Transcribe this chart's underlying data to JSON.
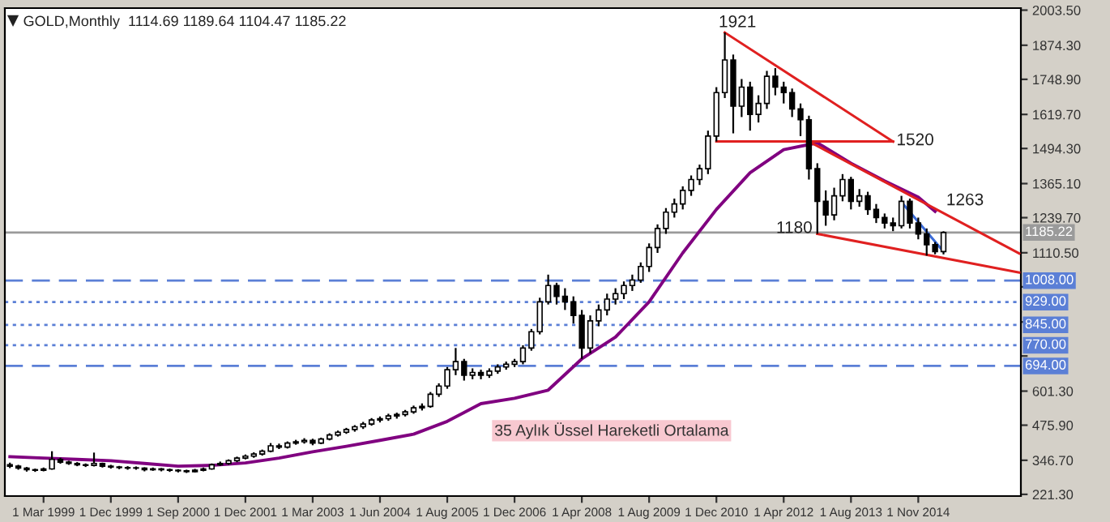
{
  "chart_data": {
    "type": "candlestick",
    "title": "GOLD,Monthly  1114.69 1189.64 1104.47 1185.22",
    "color": "#000000",
    "categories": [
      null,
      null,
      null,
      null,
      "1 Mar 1999",
      null,
      null,
      null,
      null,
      null,
      null,
      null,
      "1 Dec 1999",
      null,
      null,
      null,
      null,
      null,
      null,
      null,
      "1 Sep 2000",
      null,
      null,
      null,
      null,
      null,
      null,
      null,
      "1 Dec 2001",
      null,
      null,
      null,
      null,
      null,
      null,
      null,
      "1 Mar 2003",
      null,
      null,
      null,
      null,
      null,
      null,
      null,
      "1 Jun 2004",
      null,
      null,
      null,
      null,
      null,
      null,
      null,
      "1 Aug 2005",
      null,
      null,
      null,
      null,
      null,
      null,
      null,
      "1 Dec 2006",
      null,
      null,
      null,
      null,
      null,
      null,
      null,
      "1 Apr 2008",
      null,
      null,
      null,
      null,
      null,
      null,
      null,
      "1 Aug 2009",
      null,
      null,
      null,
      null,
      null,
      null,
      null,
      "1 Dec 2010",
      null,
      null,
      null,
      null,
      null,
      null,
      null,
      "1 Apr 2012",
      null,
      null,
      null,
      null,
      null,
      null,
      null,
      "1 Aug 2013",
      null,
      null,
      null,
      null,
      null,
      null,
      null,
      "1 Nov 2014",
      null,
      null,
      null,
      null,
      null,
      null,
      null,
      null,
      null,
      null,
      null,
      null
    ],
    "ohlc": [
      [
        330,
        338,
        318,
        325
      ],
      [
        325,
        330,
        312,
        318
      ],
      [
        318,
        322,
        305,
        312
      ],
      [
        312,
        316,
        304,
        310
      ],
      [
        310,
        320,
        306,
        315
      ],
      [
        315,
        380,
        312,
        350
      ],
      [
        350,
        356,
        334,
        340
      ],
      [
        340,
        345,
        330,
        335
      ],
      [
        335,
        340,
        325,
        330
      ],
      [
        330,
        335,
        322,
        328
      ],
      [
        328,
        375,
        324,
        335
      ],
      [
        335,
        338,
        320,
        325
      ],
      [
        325,
        330,
        316,
        322
      ],
      [
        322,
        326,
        314,
        320
      ],
      [
        320,
        325,
        312,
        318
      ],
      [
        318,
        324,
        312,
        318
      ],
      [
        318,
        321,
        306,
        312
      ],
      [
        312,
        320,
        308,
        315
      ],
      [
        315,
        318,
        306,
        312
      ],
      [
        312,
        316,
        304,
        310
      ],
      [
        310,
        314,
        302,
        308
      ],
      [
        308,
        312,
        300,
        305
      ],
      [
        305,
        315,
        302,
        310
      ],
      [
        310,
        320,
        306,
        315
      ],
      [
        315,
        335,
        312,
        330
      ],
      [
        330,
        342,
        326,
        335
      ],
      [
        335,
        350,
        330,
        345
      ],
      [
        345,
        360,
        340,
        355
      ],
      [
        355,
        368,
        350,
        362
      ],
      [
        362,
        376,
        356,
        370
      ],
      [
        370,
        386,
        364,
        380
      ],
      [
        380,
        410,
        376,
        400
      ],
      [
        400,
        408,
        388,
        395
      ],
      [
        395,
        416,
        390,
        410
      ],
      [
        410,
        422,
        404,
        415
      ],
      [
        415,
        428,
        408,
        420
      ],
      [
        420,
        426,
        402,
        410
      ],
      [
        410,
        430,
        406,
        425
      ],
      [
        425,
        446,
        420,
        440
      ],
      [
        440,
        456,
        434,
        450
      ],
      [
        450,
        466,
        444,
        460
      ],
      [
        460,
        476,
        452,
        470
      ],
      [
        470,
        488,
        462,
        480
      ],
      [
        480,
        502,
        474,
        495
      ],
      [
        495,
        508,
        486,
        500
      ],
      [
        500,
        518,
        492,
        510
      ],
      [
        510,
        522,
        500,
        515
      ],
      [
        515,
        532,
        508,
        525
      ],
      [
        525,
        548,
        518,
        540
      ],
      [
        540,
        556,
        530,
        545
      ],
      [
        545,
        598,
        540,
        590
      ],
      [
        590,
        630,
        580,
        620
      ],
      [
        620,
        690,
        610,
        680
      ],
      [
        680,
        760,
        660,
        710
      ],
      [
        710,
        720,
        640,
        660
      ],
      [
        660,
        685,
        645,
        670
      ],
      [
        670,
        680,
        645,
        660
      ],
      [
        660,
        685,
        650,
        675
      ],
      [
        675,
        700,
        665,
        690
      ],
      [
        690,
        710,
        680,
        700
      ],
      [
        700,
        720,
        690,
        710
      ],
      [
        710,
        770,
        700,
        760
      ],
      [
        760,
        830,
        750,
        820
      ],
      [
        820,
        945,
        810,
        930
      ],
      [
        930,
        1030,
        920,
        990
      ],
      [
        990,
        1000,
        920,
        950
      ],
      [
        950,
        980,
        900,
        930
      ],
      [
        930,
        950,
        850,
        880
      ],
      [
        880,
        900,
        720,
        760
      ],
      [
        760,
        880,
        740,
        860
      ],
      [
        860,
        920,
        840,
        900
      ],
      [
        900,
        960,
        880,
        940
      ],
      [
        940,
        980,
        920,
        960
      ],
      [
        960,
        1005,
        940,
        990
      ],
      [
        990,
        1030,
        970,
        1010
      ],
      [
        1010,
        1075,
        1000,
        1060
      ],
      [
        1060,
        1145,
        1040,
        1130
      ],
      [
        1130,
        1215,
        1110,
        1200
      ],
      [
        1200,
        1275,
        1180,
        1260
      ],
      [
        1260,
        1310,
        1240,
        1290
      ],
      [
        1290,
        1355,
        1270,
        1340
      ],
      [
        1340,
        1395,
        1320,
        1380
      ],
      [
        1380,
        1435,
        1360,
        1420
      ],
      [
        1420,
        1560,
        1400,
        1540
      ],
      [
        1540,
        1720,
        1520,
        1700
      ],
      [
        1700,
        1921,
        1680,
        1820
      ],
      [
        1820,
        1840,
        1550,
        1650
      ],
      [
        1650,
        1750,
        1610,
        1720
      ],
      [
        1720,
        1740,
        1560,
        1620
      ],
      [
        1620,
        1690,
        1590,
        1660
      ],
      [
        1660,
        1780,
        1640,
        1760
      ],
      [
        1760,
        1790,
        1690,
        1720
      ],
      [
        1720,
        1740,
        1660,
        1700
      ],
      [
        1700,
        1715,
        1610,
        1640
      ],
      [
        1640,
        1660,
        1540,
        1600
      ],
      [
        1600,
        1615,
        1380,
        1420
      ],
      [
        1420,
        1440,
        1180,
        1300
      ],
      [
        1300,
        1340,
        1210,
        1250
      ],
      [
        1250,
        1350,
        1230,
        1320
      ],
      [
        1320,
        1400,
        1300,
        1380
      ],
      [
        1380,
        1390,
        1270,
        1300
      ],
      [
        1300,
        1345,
        1280,
        1320
      ],
      [
        1320,
        1335,
        1250,
        1270
      ],
      [
        1270,
        1290,
        1220,
        1240
      ],
      [
        1240,
        1255,
        1200,
        1220
      ],
      [
        1220,
        1240,
        1190,
        1210
      ],
      [
        1210,
        1320,
        1200,
        1300
      ],
      [
        1300,
        1310,
        1200,
        1220
      ],
      [
        1220,
        1240,
        1160,
        1180
      ],
      [
        1180,
        1200,
        1100,
        1140
      ],
      [
        1140,
        1150,
        1105,
        1114.69
      ],
      [
        1114.69,
        1189.64,
        1104.47,
        1185.22
      ],
      null,
      null,
      null,
      null,
      null,
      null,
      null,
      null,
      null
    ],
    "series": [
      {
        "type": "line",
        "name": "35 Aylık Üssel Hareketli Ortalama",
        "color": "#800080",
        "values": [
          360,
          null,
          null,
          null,
          355,
          null,
          null,
          null,
          350,
          null,
          null,
          null,
          345,
          null,
          null,
          null,
          335,
          null,
          null,
          null,
          325,
          null,
          null,
          null,
          328,
          null,
          null,
          null,
          337,
          null,
          null,
          null,
          355,
          null,
          null,
          null,
          378,
          null,
          null,
          null,
          398,
          null,
          null,
          null,
          420,
          null,
          null,
          null,
          443,
          null,
          null,
          null,
          490,
          null,
          null,
          null,
          555,
          null,
          null,
          null,
          575,
          null,
          null,
          null,
          605,
          null,
          null,
          null,
          720,
          null,
          null,
          null,
          800,
          null,
          null,
          null,
          930,
          null,
          null,
          null,
          1110,
          null,
          null,
          null,
          1270,
          null,
          null,
          null,
          1405,
          null,
          null,
          null,
          1490,
          null,
          null,
          null,
          1515,
          null,
          null,
          null,
          1440,
          null,
          null,
          null,
          1375,
          null,
          null,
          null,
          1315,
          null,
          1263,
          null,
          null,
          null,
          null,
          null,
          null,
          null,
          null,
          null,
          null
        ]
      },
      {
        "type": "line",
        "color": "#e02020",
        "values": [
          null,
          null,
          null,
          null,
          null,
          null,
          null,
          null,
          null,
          null,
          null,
          null,
          null,
          null,
          null,
          null,
          null,
          null,
          null,
          null,
          null,
          null,
          null,
          null,
          null,
          null,
          null,
          null,
          null,
          null,
          null,
          null,
          null,
          null,
          null,
          null,
          null,
          null,
          null,
          null,
          null,
          null,
          null,
          null,
          null,
          null,
          null,
          null,
          null,
          null,
          null,
          null,
          null,
          null,
          null,
          null,
          null,
          null,
          null,
          null,
          null,
          null,
          null,
          null,
          null,
          null,
          null,
          null,
          null,
          null,
          null,
          null,
          null,
          null,
          null,
          null,
          null,
          null,
          null,
          null,
          null,
          null,
          null,
          null,
          null,
          1921,
          null,
          null,
          null,
          null,
          null,
          null,
          null,
          null,
          null,
          null,
          null,
          null,
          null,
          null,
          null,
          null,
          null,
          null,
          null,
          1520,
          null,
          null,
          null,
          null,
          null,
          null,
          null,
          null,
          null,
          null,
          null,
          null,
          null,
          null,
          null
        ]
      },
      {
        "type": "line",
        "color": "#e02020",
        "values": [
          null,
          null,
          null,
          null,
          null,
          null,
          null,
          null,
          null,
          null,
          null,
          null,
          null,
          null,
          null,
          null,
          null,
          null,
          null,
          null,
          null,
          null,
          null,
          null,
          null,
          null,
          null,
          null,
          null,
          null,
          null,
          null,
          null,
          null,
          null,
          null,
          null,
          null,
          null,
          null,
          null,
          null,
          null,
          null,
          null,
          null,
          null,
          null,
          null,
          null,
          null,
          null,
          null,
          null,
          null,
          null,
          null,
          null,
          null,
          null,
          null,
          null,
          null,
          null,
          null,
          null,
          null,
          null,
          null,
          null,
          null,
          null,
          null,
          null,
          null,
          null,
          null,
          null,
          null,
          null,
          null,
          null,
          null,
          null,
          1520,
          null,
          null,
          null,
          null,
          null,
          null,
          null,
          null,
          null,
          null,
          null,
          null,
          null,
          null,
          null,
          null,
          null,
          null,
          null,
          null,
          1520,
          null,
          null,
          null,
          null,
          null,
          null,
          null,
          null,
          null,
          null,
          null,
          null,
          null,
          null,
          null
        ]
      },
      {
        "type": "line",
        "color": "#e02020",
        "values": [
          null,
          null,
          null,
          null,
          null,
          null,
          null,
          null,
          null,
          null,
          null,
          null,
          null,
          null,
          null,
          null,
          null,
          null,
          null,
          null,
          null,
          null,
          null,
          null,
          null,
          null,
          null,
          null,
          null,
          null,
          null,
          null,
          null,
          null,
          null,
          null,
          null,
          null,
          null,
          null,
          null,
          null,
          null,
          null,
          null,
          null,
          null,
          null,
          null,
          null,
          null,
          null,
          null,
          null,
          null,
          null,
          null,
          null,
          null,
          null,
          null,
          null,
          null,
          null,
          null,
          null,
          null,
          null,
          null,
          null,
          null,
          null,
          null,
          null,
          null,
          null,
          null,
          null,
          null,
          null,
          null,
          null,
          null,
          null,
          null,
          null,
          null,
          null,
          null,
          null,
          null,
          null,
          null,
          null,
          null,
          1520,
          null,
          null,
          null,
          null,
          null,
          null,
          null,
          null,
          null,
          null,
          null,
          null,
          null,
          null,
          null,
          null,
          null,
          null,
          null,
          null,
          null,
          null,
          null,
          null,
          1108
        ]
      },
      {
        "type": "line",
        "color": "#e02020",
        "values": [
          null,
          null,
          null,
          null,
          null,
          null,
          null,
          null,
          null,
          null,
          null,
          null,
          null,
          null,
          null,
          null,
          null,
          null,
          null,
          null,
          null,
          null,
          null,
          null,
          null,
          null,
          null,
          null,
          null,
          null,
          null,
          null,
          null,
          null,
          null,
          null,
          null,
          null,
          null,
          null,
          null,
          null,
          null,
          null,
          null,
          null,
          null,
          null,
          null,
          null,
          null,
          null,
          null,
          null,
          null,
          null,
          null,
          null,
          null,
          null,
          null,
          null,
          null,
          null,
          null,
          null,
          null,
          null,
          null,
          null,
          null,
          null,
          null,
          null,
          null,
          null,
          null,
          null,
          null,
          null,
          null,
          null,
          null,
          null,
          null,
          null,
          null,
          null,
          null,
          null,
          null,
          null,
          null,
          null,
          null,
          null,
          1180,
          null,
          null,
          null,
          null,
          null,
          null,
          null,
          null,
          null,
          null,
          null,
          null,
          null,
          null,
          null,
          null,
          null,
          null,
          null,
          null,
          null,
          null,
          null,
          1038
        ]
      },
      {
        "type": "line",
        "color": "#3a6bd8",
        "values": [
          null,
          null,
          null,
          null,
          null,
          null,
          null,
          null,
          null,
          null,
          null,
          null,
          null,
          null,
          null,
          null,
          null,
          null,
          null,
          null,
          null,
          null,
          null,
          null,
          null,
          null,
          null,
          null,
          null,
          null,
          null,
          null,
          null,
          null,
          null,
          null,
          null,
          null,
          null,
          null,
          null,
          null,
          null,
          null,
          null,
          null,
          null,
          null,
          null,
          null,
          null,
          null,
          null,
          null,
          null,
          null,
          null,
          null,
          null,
          null,
          null,
          null,
          null,
          null,
          null,
          null,
          null,
          null,
          null,
          null,
          null,
          null,
          null,
          null,
          null,
          null,
          null,
          null,
          null,
          null,
          null,
          null,
          null,
          null,
          null,
          null,
          null,
          null,
          null,
          null,
          null,
          null,
          null,
          null,
          null,
          null,
          null,
          null,
          null,
          null,
          null,
          null,
          null,
          null,
          null,
          null,
          1297,
          null,
          null,
          null,
          null,
          1115,
          null,
          null,
          null,
          null,
          null,
          null,
          null,
          null,
          null
        ]
      }
    ],
    "ylim": [
      215,
      2011
    ],
    "yticks": [
      {
        "value": 221.3,
        "label": "221.30"
      },
      {
        "value": 346.7,
        "label": "346.70"
      },
      {
        "value": 475.9,
        "label": "475.90"
      },
      {
        "value": 601.3,
        "label": "601.30"
      },
      {
        "value": 730.5,
        "label": null
      },
      {
        "value": 855.7,
        "label": null
      },
      {
        "value": 985.1,
        "label": null
      },
      {
        "value": 1110.5,
        "label": "1110.50"
      },
      {
        "value": 1239.7,
        "label": "1239.70"
      },
      {
        "value": 1365.1,
        "label": "1365.10"
      },
      {
        "value": 1494.3,
        "label": "1494.30"
      },
      {
        "value": 1619.7,
        "label": "1619.70"
      },
      {
        "value": 1748.9,
        "label": "1748.90"
      },
      {
        "value": 1874.3,
        "label": "1874.30"
      },
      {
        "value": 2003.5,
        "label": "2003.50"
      }
    ],
    "ref_lines": [
      {
        "axis": "y",
        "value": 1185.22,
        "label": "1185.22",
        "color": "#9a9a9a",
        "line_style": "solid"
      },
      {
        "axis": "y",
        "value": 1008,
        "label": "1008.00",
        "color": "#5b7fd6",
        "line_style": "dashed"
      },
      {
        "axis": "y",
        "value": 929,
        "label": "929.00",
        "color": "#5b7fd6",
        "line_style": "dotted"
      },
      {
        "axis": "y",
        "value": 845,
        "label": "845.00",
        "color": "#5b7fd6",
        "line_style": "dotted"
      },
      {
        "axis": "y",
        "value": 770,
        "label": "770.00",
        "color": "#5b7fd6",
        "line_style": "dotted"
      },
      {
        "axis": "y",
        "value": 694,
        "label": "694.00",
        "color": "#5b7fd6",
        "line_style": "dashed"
      }
    ],
    "annotations": [
      "1921",
      "1520",
      "1180",
      "1263"
    ],
    "grid": false,
    "legend": false
  }
}
